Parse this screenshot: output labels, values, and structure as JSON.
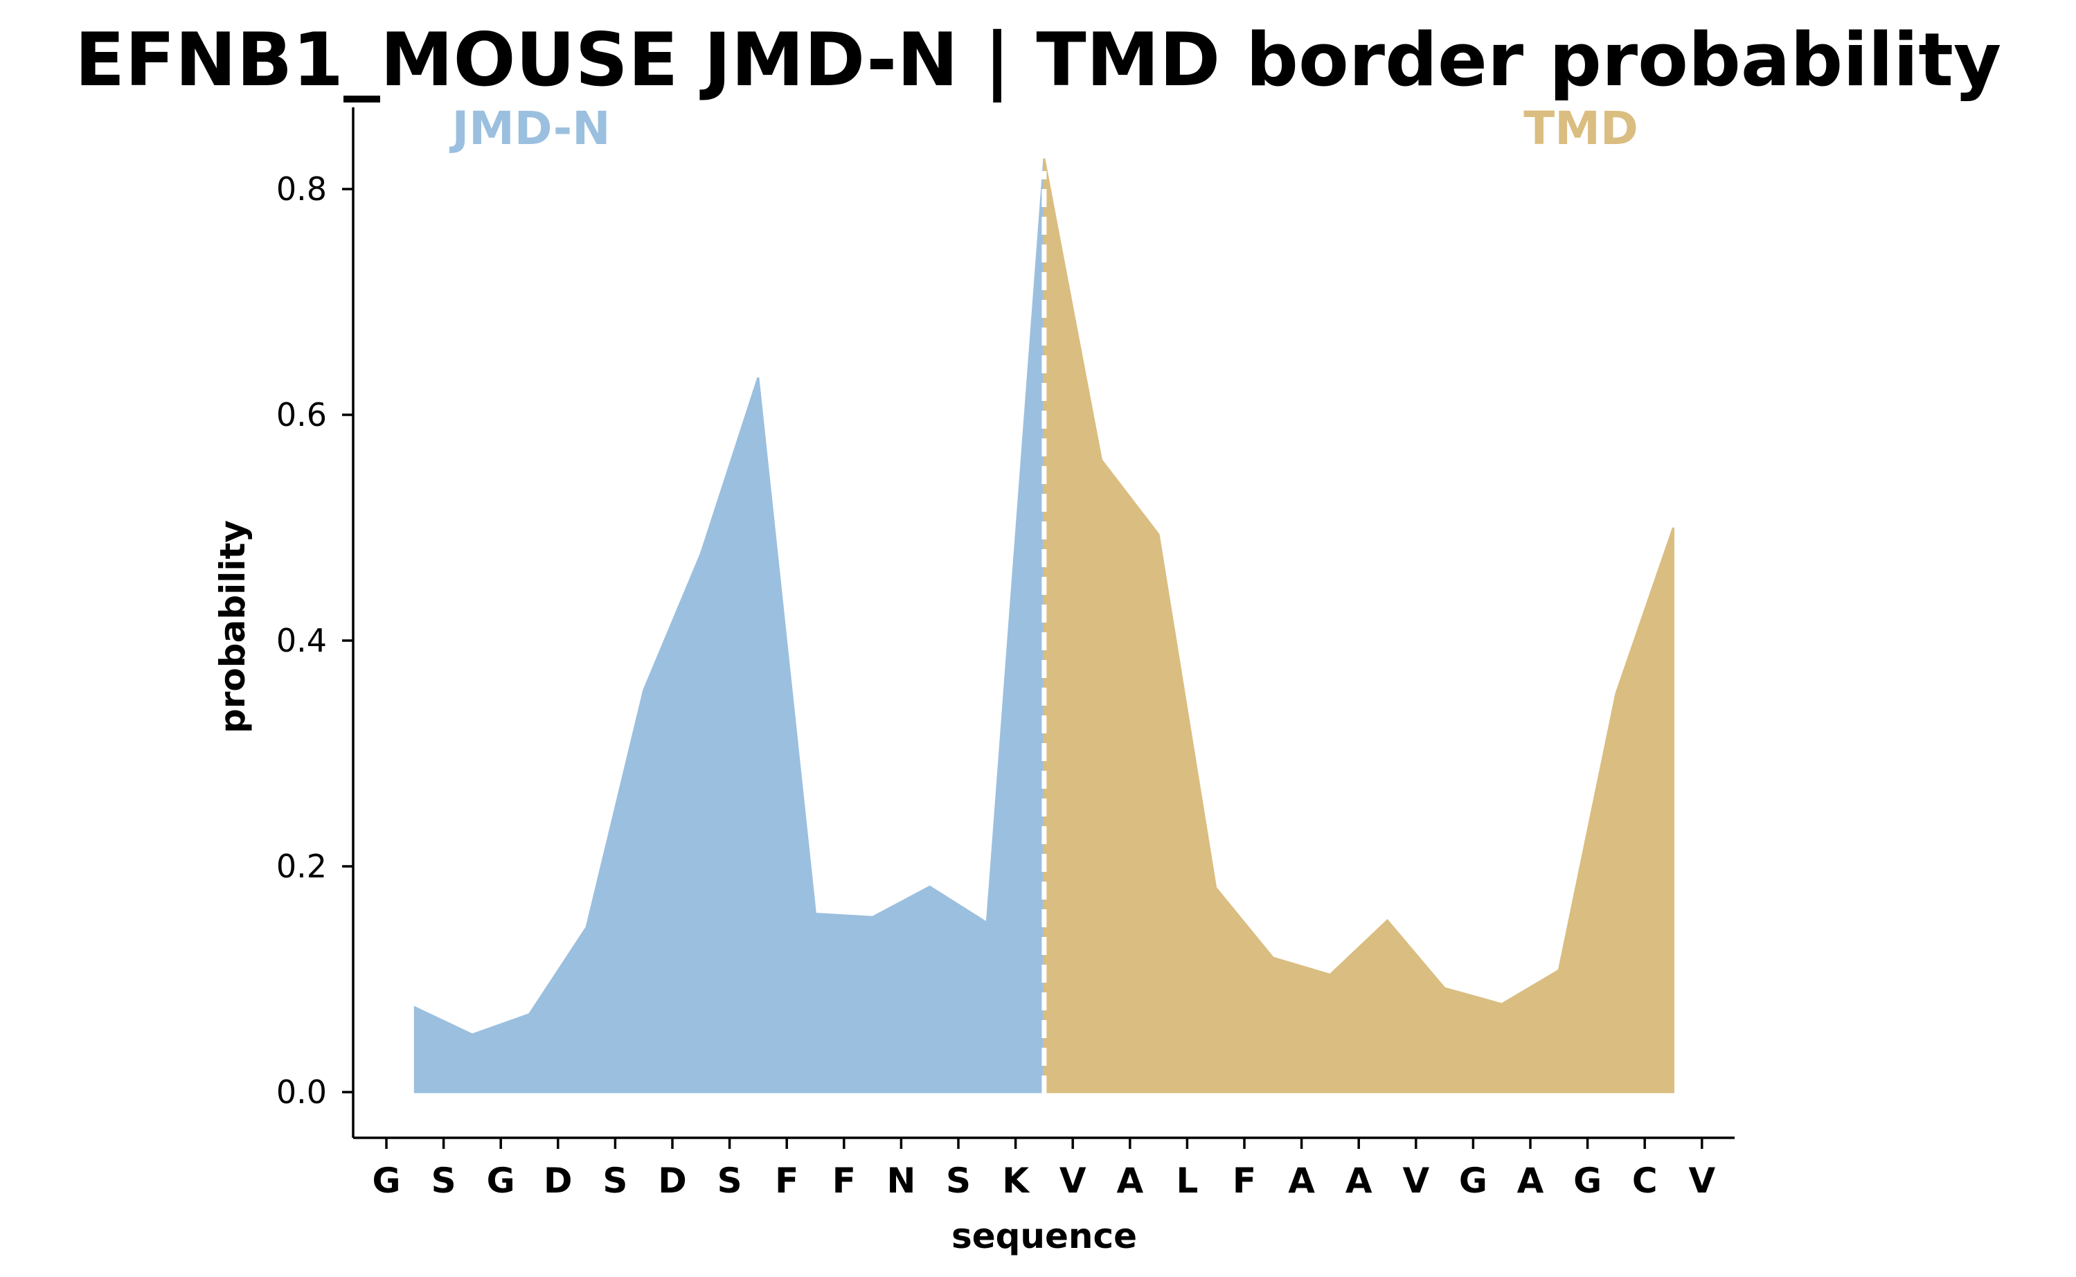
{
  "chart_data": {
    "type": "area",
    "title": "EFNB1_MOUSE JMD-N | TMD border probability",
    "xlabel": "sequence",
    "ylabel": "probability",
    "ylim": [
      -0.04,
      0.87
    ],
    "yticks": [
      "0.0",
      "0.2",
      "0.4",
      "0.6",
      "0.8"
    ],
    "categories": [
      "G",
      "S",
      "G",
      "D",
      "S",
      "D",
      "S",
      "F",
      "F",
      "N",
      "S",
      "K",
      "V",
      "A",
      "L",
      "F",
      "A",
      "A",
      "V",
      "G",
      "A",
      "G",
      "C",
      "V"
    ],
    "border_index": 11.5,
    "regions": [
      {
        "label": "JMD-N",
        "color": "#9bbfdf"
      },
      {
        "label": "TMD",
        "color": "#dabd80"
      }
    ],
    "series": [
      {
        "x": [
          0.5,
          1.5,
          2.5,
          3.5,
          4.5,
          5.5,
          6.5,
          7.5,
          8.5,
          9.5,
          10.5,
          11.5
        ],
        "values": [
          0.075,
          0.051,
          0.069,
          0.146,
          0.356,
          0.477,
          0.633,
          0.158,
          0.155,
          0.182,
          0.15,
          0.827
        ]
      },
      {
        "x": [
          11.5,
          12.5,
          13.5,
          14.5,
          15.5,
          16.5,
          17.5,
          18.5,
          19.5,
          20.5,
          21.5,
          22.5
        ],
        "values": [
          0.827,
          0.56,
          0.494,
          0.181,
          0.119,
          0.104,
          0.152,
          0.092,
          0.078,
          0.108,
          0.353,
          0.5
        ]
      }
    ],
    "grid": false,
    "legend": "none"
  }
}
